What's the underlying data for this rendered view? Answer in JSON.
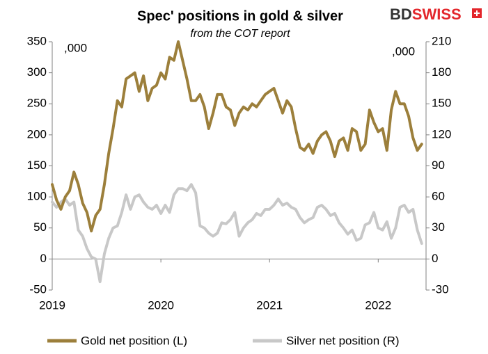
{
  "chart_data": {
    "type": "line",
    "title": "Spec' positions in gold & silver",
    "subtitle": "from the COT report",
    "brand": [
      "BD",
      "SWISS"
    ],
    "y_unit_label": ",000",
    "y2_unit_label": ",000",
    "x": [
      2019.0,
      2019.04,
      2019.08,
      2019.12,
      2019.16,
      2019.2,
      2019.24,
      2019.28,
      2019.32,
      2019.36,
      2019.4,
      2019.44,
      2019.48,
      2019.52,
      2019.56,
      2019.6,
      2019.64,
      2019.68,
      2019.72,
      2019.76,
      2019.8,
      2019.84,
      2019.88,
      2019.92,
      2019.96,
      2020.0,
      2020.04,
      2020.08,
      2020.12,
      2020.16,
      2020.2,
      2020.24,
      2020.28,
      2020.32,
      2020.36,
      2020.4,
      2020.44,
      2020.48,
      2020.52,
      2020.56,
      2020.6,
      2020.64,
      2020.68,
      2020.72,
      2020.76,
      2020.8,
      2020.84,
      2020.88,
      2020.92,
      2020.96,
      2021.0,
      2021.04,
      2021.08,
      2021.12,
      2021.16,
      2021.2,
      2021.24,
      2021.28,
      2021.32,
      2021.36,
      2021.4,
      2021.44,
      2021.48,
      2021.52,
      2021.56,
      2021.6,
      2021.64,
      2021.68,
      2021.72,
      2021.76,
      2021.8,
      2021.84,
      2021.88,
      2021.92,
      2021.96,
      2022.0,
      2022.04,
      2022.08,
      2022.12,
      2022.16,
      2022.2,
      2022.24,
      2022.28,
      2022.32,
      2022.36,
      2022.4
    ],
    "xlim": [
      2019,
      2022.44
    ],
    "xticks": [
      2019,
      2020,
      2021,
      2022
    ],
    "ylim": [
      -50,
      350
    ],
    "yticks": [
      -50,
      0,
      50,
      100,
      150,
      200,
      250,
      300,
      350
    ],
    "y2lim": [
      -30,
      210
    ],
    "y2ticks": [
      -30,
      0,
      30,
      60,
      90,
      120,
      150,
      180,
      210
    ],
    "series": [
      {
        "name": "Gold net position (L)",
        "color": "#9c7f3b",
        "axis": "y",
        "values": [
          120,
          95,
          80,
          100,
          110,
          140,
          120,
          90,
          75,
          45,
          70,
          80,
          120,
          170,
          210,
          255,
          245,
          290,
          295,
          300,
          270,
          295,
          255,
          275,
          280,
          300,
          290,
          325,
          320,
          350,
          320,
          290,
          255,
          255,
          265,
          245,
          210,
          235,
          265,
          265,
          245,
          240,
          215,
          235,
          245,
          240,
          250,
          245,
          255,
          265,
          270,
          275,
          255,
          235,
          255,
          245,
          210,
          180,
          175,
          185,
          170,
          190,
          200,
          205,
          190,
          165,
          190,
          195,
          175,
          210,
          205,
          175,
          185,
          240,
          220,
          205,
          210,
          175,
          240,
          270,
          250,
          250,
          230,
          195,
          175,
          185
        ]
      },
      {
        "name": "Silver net position (R)",
        "color": "#c8c8c8",
        "axis": "y2",
        "values": [
          55,
          50,
          55,
          58,
          52,
          55,
          28,
          22,
          10,
          2,
          0,
          -22,
          5,
          20,
          30,
          32,
          45,
          62,
          48,
          60,
          62,
          55,
          50,
          48,
          52,
          44,
          52,
          45,
          62,
          68,
          68,
          66,
          72,
          64,
          32,
          30,
          25,
          22,
          25,
          35,
          34,
          38,
          45,
          22,
          30,
          35,
          38,
          44,
          42,
          48,
          48,
          52,
          58,
          52,
          54,
          50,
          48,
          40,
          35,
          38,
          40,
          50,
          52,
          48,
          42,
          44,
          35,
          30,
          24,
          28,
          18,
          20,
          33,
          35,
          45,
          30,
          28,
          36,
          20,
          30,
          50,
          52,
          45,
          48,
          28,
          15
        ]
      }
    ]
  }
}
